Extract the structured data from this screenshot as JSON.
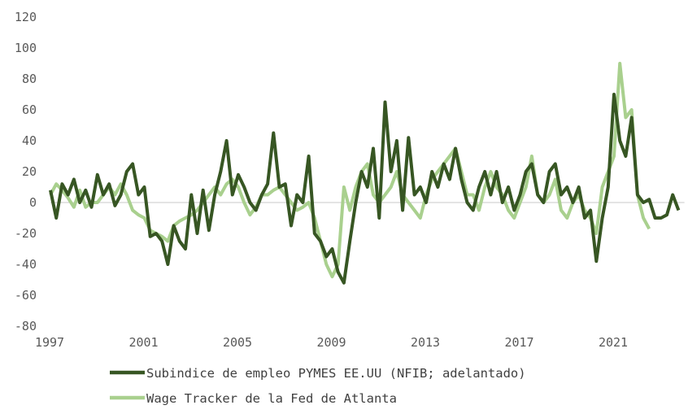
{
  "chart_data": {
    "type": "line",
    "title": "",
    "xlabel": "",
    "ylabel": "",
    "xlim": [
      1997,
      2024
    ],
    "ylim": [
      -80,
      120
    ],
    "yticks": [
      "120",
      "100",
      "80",
      "60",
      "40",
      "20",
      "0",
      "-20",
      "-40",
      "-60",
      "-80"
    ],
    "xticks": [
      "1997",
      "2001",
      "2005",
      "2009",
      "2013",
      "2017",
      "2021"
    ],
    "grid": false,
    "zero_line": true,
    "legend_position": "bottom",
    "series": [
      {
        "name": "Subindice de empleo PYMES EE.UU (NFIB; adelantado)",
        "color": "#375623",
        "start_year": 1997,
        "step_years": 0.25,
        "values": [
          8,
          -10,
          12,
          5,
          15,
          0,
          8,
          -3,
          18,
          5,
          12,
          -2,
          5,
          20,
          25,
          5,
          10,
          -22,
          -20,
          -25,
          -40,
          -15,
          -25,
          -30,
          5,
          -20,
          8,
          -18,
          5,
          20,
          40,
          5,
          18,
          10,
          0,
          -5,
          5,
          12,
          45,
          10,
          12,
          -15,
          5,
          0,
          30,
          -20,
          -25,
          -35,
          -30,
          -45,
          -52,
          -25,
          0,
          20,
          10,
          35,
          -10,
          65,
          20,
          40,
          -5,
          42,
          5,
          10,
          0,
          20,
          10,
          25,
          15,
          35,
          15,
          0,
          -5,
          10,
          20,
          5,
          20,
          0,
          10,
          -5,
          5,
          20,
          25,
          5,
          0,
          20,
          25,
          5,
          10,
          0,
          10,
          -10,
          -5,
          -38,
          -10,
          10,
          70,
          40,
          30,
          55,
          5,
          0,
          2,
          -10,
          -10,
          -8,
          5,
          -5
        ]
      },
      {
        "name": "Wage Tracker de la Fed de Atlanta",
        "color": "#A9D08E",
        "start_year": 1997,
        "step_years": 0.25,
        "values": [
          5,
          12,
          8,
          3,
          -3,
          8,
          -3,
          0,
          0,
          5,
          10,
          5,
          12,
          5,
          -5,
          -8,
          -10,
          -18,
          -20,
          -22,
          -25,
          -15,
          -12,
          -10,
          -8,
          -5,
          0,
          5,
          10,
          5,
          12,
          15,
          10,
          0,
          -8,
          -3,
          5,
          5,
          8,
          10,
          5,
          0,
          -5,
          -3,
          0,
          -10,
          -25,
          -40,
          -48,
          -40,
          10,
          -5,
          10,
          20,
          25,
          5,
          0,
          5,
          10,
          20,
          5,
          0,
          -5,
          -10,
          5,
          15,
          20,
          25,
          30,
          35,
          20,
          5,
          5,
          -5,
          10,
          20,
          10,
          5,
          -5,
          -10,
          0,
          10,
          30,
          5,
          0,
          5,
          15,
          -5,
          -10,
          0,
          5,
          -5,
          -10,
          -20,
          10,
          20,
          30,
          90,
          55,
          60,
          5,
          -10,
          -17
        ]
      }
    ]
  }
}
